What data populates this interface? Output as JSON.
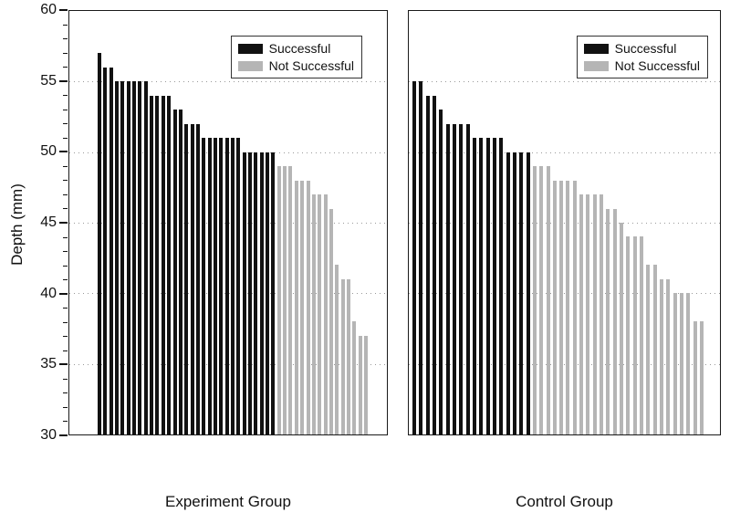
{
  "chart_data": {
    "type": "bar",
    "title": "",
    "xlabel": "",
    "ylabel": "Depth (mm)",
    "ylim": [
      30,
      60
    ],
    "yticks": [
      30,
      35,
      40,
      45,
      50,
      55,
      60
    ],
    "grid_values": [
      35,
      40,
      45,
      50,
      55
    ],
    "grid": "horizontal-dotted",
    "legend_position": "top-right-inside-each-panel",
    "legend": {
      "successful_label": "Successful",
      "not_successful_label": "Not Successful"
    },
    "colors": {
      "successful": "#111111",
      "not_successful": "#b5b5b5"
    },
    "panels": [
      {
        "label": "Experiment Group",
        "series": [
          {
            "name": "Successful",
            "values": [
              57,
              56,
              56,
              55,
              55,
              55,
              55,
              55,
              55,
              54,
              54,
              54,
              54,
              53,
              53,
              52,
              52,
              52,
              51,
              51,
              51,
              51,
              51,
              51,
              51,
              50,
              50,
              50,
              50,
              50,
              50
            ]
          },
          {
            "name": "Not Successful",
            "values": [
              49,
              49,
              49,
              48,
              48,
              48,
              47,
              47,
              47,
              46,
              42,
              41,
              41,
              38,
              37,
              37
            ]
          }
        ]
      },
      {
        "label": "Control Group",
        "series": [
          {
            "name": "Successful",
            "values": [
              55,
              55,
              54,
              54,
              53,
              52,
              52,
              52,
              52,
              51,
              51,
              51,
              51,
              51,
              50,
              50,
              50,
              50
            ]
          },
          {
            "name": "Not Successful",
            "values": [
              49,
              49,
              49,
              48,
              48,
              48,
              48,
              47,
              47,
              47,
              47,
              46,
              46,
              45,
              44,
              44,
              44,
              42,
              42,
              41,
              41,
              40,
              40,
              40,
              38,
              38
            ]
          }
        ]
      }
    ]
  }
}
